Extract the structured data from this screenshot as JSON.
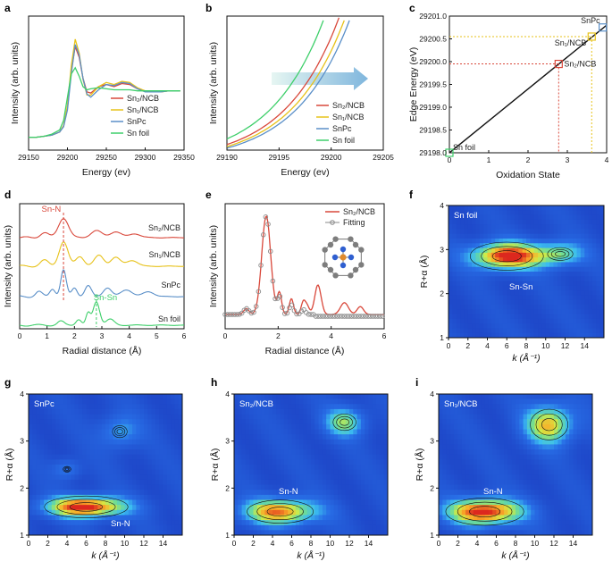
{
  "figure": {
    "panel_letters": [
      "a",
      "b",
      "c",
      "d",
      "e",
      "f",
      "g",
      "h",
      "i"
    ]
  },
  "colors": {
    "sn2": "#d9483b",
    "sn1": "#e7c21a",
    "snpc": "#5a8fc8",
    "snfoil": "#3ecf6a",
    "fitting": "#8a8a8a",
    "black": "#111111"
  },
  "chart_data": [
    {
      "panel": "a",
      "type": "line",
      "xlabel": "Energy (ev)",
      "ylabel": "Intensity (arb. units)",
      "xlim": [
        29150,
        29350
      ],
      "xticks": [
        "29150",
        "29200",
        "29250",
        "29300",
        "29350"
      ],
      "legend_position": "center-right",
      "series": [
        {
          "name": "Sn₂/NCB",
          "color": "#d9483b",
          "x": [
            29150,
            29160,
            29170,
            29180,
            29190,
            29195,
            29200,
            29205,
            29210,
            29215,
            29220,
            29225,
            29230,
            29240,
            29250,
            29260,
            29270,
            29280,
            29290,
            29300,
            29310,
            29320,
            29330,
            29340,
            29345
          ],
          "y": [
            0.02,
            0.02,
            0.03,
            0.04,
            0.07,
            0.13,
            0.3,
            0.65,
            0.88,
            0.78,
            0.58,
            0.45,
            0.44,
            0.5,
            0.52,
            0.5,
            0.53,
            0.52,
            0.48,
            0.46,
            0.45,
            0.45,
            0.46,
            0.46,
            0.46
          ]
        },
        {
          "name": "Sn₁/NCB",
          "color": "#e7c21a",
          "x": [
            29150,
            29160,
            29170,
            29180,
            29190,
            29195,
            29200,
            29205,
            29210,
            29215,
            29220,
            29225,
            29230,
            29240,
            29250,
            29260,
            29270,
            29280,
            29290,
            29300,
            29310,
            29320,
            29330,
            29340,
            29345
          ],
          "y": [
            0.02,
            0.02,
            0.03,
            0.04,
            0.07,
            0.13,
            0.32,
            0.7,
            0.95,
            0.82,
            0.57,
            0.42,
            0.42,
            0.5,
            0.54,
            0.52,
            0.55,
            0.54,
            0.49,
            0.46,
            0.45,
            0.45,
            0.46,
            0.46,
            0.46
          ]
        },
        {
          "name": "SnPc",
          "color": "#5a8fc8",
          "x": [
            29150,
            29160,
            29170,
            29180,
            29190,
            29195,
            29200,
            29205,
            29210,
            29215,
            29220,
            29225,
            29230,
            29240,
            29250,
            29260,
            29270,
            29280,
            29290,
            29300,
            29310,
            29320,
            29330,
            29340,
            29345
          ],
          "y": [
            0.02,
            0.02,
            0.03,
            0.04,
            0.07,
            0.12,
            0.28,
            0.62,
            0.9,
            0.8,
            0.58,
            0.43,
            0.4,
            0.47,
            0.52,
            0.51,
            0.54,
            0.53,
            0.48,
            0.45,
            0.45,
            0.45,
            0.46,
            0.46,
            0.46
          ]
        },
        {
          "name": "Sn foil",
          "color": "#3ecf6a",
          "x": [
            29150,
            29160,
            29170,
            29180,
            29190,
            29195,
            29200,
            29205,
            29210,
            29215,
            29220,
            29225,
            29230,
            29240,
            29250,
            29260,
            29270,
            29280,
            29290,
            29300,
            29310,
            29320,
            29330,
            29340,
            29345
          ],
          "y": [
            0.02,
            0.02,
            0.03,
            0.05,
            0.09,
            0.18,
            0.4,
            0.62,
            0.68,
            0.6,
            0.5,
            0.47,
            0.48,
            0.49,
            0.48,
            0.47,
            0.47,
            0.47,
            0.46,
            0.46,
            0.46,
            0.46,
            0.46,
            0.46,
            0.46
          ]
        }
      ]
    },
    {
      "panel": "b",
      "type": "line",
      "xlabel": "Energy (ev)",
      "ylabel": "Intensity (arb. units)",
      "xlim": [
        29190,
        29205
      ],
      "xticks": [
        "29190",
        "29195",
        "29200",
        "29205"
      ],
      "legend_position": "center-right",
      "series": [
        {
          "name": "Sn₂/NCB",
          "color": "#d9483b",
          "shift": 0.8
        },
        {
          "name": "Sn₁/NCB",
          "color": "#e7c21a",
          "shift": 1.4
        },
        {
          "name": "SnPc",
          "color": "#5a8fc8",
          "shift": 1.9
        },
        {
          "name": "Sn foil",
          "color": "#3ecf6a",
          "shift": -0.6
        }
      ]
    },
    {
      "panel": "c",
      "type": "scatter",
      "xlabel": "Oxidation State",
      "ylabel": "Edge Energy (eV)",
      "xlim": [
        0,
        4
      ],
      "ylim": [
        29198.0,
        29201.0
      ],
      "xticks": [
        "0",
        "1",
        "2",
        "3",
        "4"
      ],
      "yticks": [
        "29198.0",
        "29198.5",
        "29199.0",
        "29199.5",
        "29200.0",
        "29200.5",
        "29201.0"
      ],
      "fit_line": {
        "x": [
          0,
          4
        ],
        "y": [
          29198.0,
          29200.8
        ]
      },
      "points": [
        {
          "name": "Sn foil",
          "x": 0.0,
          "y": 29198.0,
          "color": "#3ecf6a"
        },
        {
          "name": "Sn₂/NCB",
          "x": 2.78,
          "y": 29199.95,
          "color": "#d9483b"
        },
        {
          "name": "Sn₁/NCB",
          "x": 3.62,
          "y": 29200.55,
          "color": "#e7c21a"
        },
        {
          "name": "SnPc",
          "x": 3.9,
          "y": 29200.75,
          "color": "#5a8fc8"
        }
      ]
    },
    {
      "panel": "d",
      "type": "line",
      "xlabel": "Radial distance (Å)",
      "ylabel": "Intensity (arb. units)",
      "xlim": [
        0,
        6
      ],
      "xticks": [
        "0",
        "1",
        "2",
        "3",
        "4",
        "5",
        "6"
      ],
      "annotations": [
        "Sn-N",
        "Sn-Sn"
      ],
      "series": [
        {
          "name": "Sn₂/NCB",
          "color": "#d9483b"
        },
        {
          "name": "Sn₁/NCB",
          "color": "#e7c21a"
        },
        {
          "name": "SnPc",
          "color": "#5a8fc8"
        },
        {
          "name": "Sn foil",
          "color": "#3ecf6a"
        }
      ]
    },
    {
      "panel": "e",
      "type": "line",
      "xlabel": "Radial distance (Å)",
      "ylabel": "Intensity (arb. units)",
      "xlim": [
        0,
        6
      ],
      "xticks": [
        "0",
        "2",
        "4",
        "6"
      ],
      "series": [
        {
          "name": "Sn₂/NCB",
          "color": "#d9483b"
        },
        {
          "name": "Fitting",
          "color": "#8a8a8a"
        }
      ]
    },
    {
      "panel": "f",
      "type": "heatmap",
      "label": "Sn foil",
      "annotation": "Sn-Sn",
      "xlabel": "k (Å⁻¹)",
      "ylabel": "R+α (Å)",
      "xlim": [
        0,
        16
      ],
      "ylim": [
        1,
        4
      ],
      "xticks": [
        "0",
        "2",
        "4",
        "6",
        "8",
        "10",
        "12",
        "14"
      ],
      "yticks": [
        "1",
        "2",
        "3",
        "4"
      ],
      "peaks": [
        {
          "k": 6.0,
          "r": 2.85,
          "amp": 1.0,
          "sk": 2.6,
          "sr": 0.22
        },
        {
          "k": 11.5,
          "r": 2.9,
          "amp": 0.5,
          "sk": 1.8,
          "sr": 0.2
        }
      ]
    },
    {
      "panel": "g",
      "type": "heatmap",
      "label": "SnPc",
      "annotation": "Sn-N",
      "xlabel": "k (Å⁻¹)",
      "ylabel": "R+α (Å)",
      "xlim": [
        0,
        16
      ],
      "ylim": [
        1,
        4
      ],
      "xticks": [
        "0",
        "2",
        "4",
        "6",
        "8",
        "10",
        "12",
        "14"
      ],
      "yticks": [
        "1",
        "2",
        "3",
        "4"
      ],
      "peaks": [
        {
          "k": 6.0,
          "r": 1.6,
          "amp": 1.0,
          "sk": 3.0,
          "sr": 0.16
        },
        {
          "k": 9.5,
          "r": 3.2,
          "amp": 0.35,
          "sk": 1.5,
          "sr": 0.25
        },
        {
          "k": 4.0,
          "r": 2.4,
          "amp": 0.28,
          "sk": 1.0,
          "sr": 0.15
        }
      ]
    },
    {
      "panel": "h",
      "type": "heatmap",
      "label": "Sn₂/NCB",
      "annotation": "Sn-N",
      "xlabel": "k (Å⁻¹)",
      "ylabel": "R+α (Å)",
      "xlim": [
        0,
        16
      ],
      "ylim": [
        1,
        4
      ],
      "xticks": [
        "0",
        "2",
        "4",
        "6",
        "8",
        "10",
        "12",
        "14"
      ],
      "yticks": [
        "1",
        "2",
        "3",
        "4"
      ],
      "peaks": [
        {
          "k": 4.8,
          "r": 1.5,
          "amp": 0.85,
          "sk": 2.8,
          "sr": 0.2
        },
        {
          "k": 11.5,
          "r": 3.4,
          "amp": 0.55,
          "sk": 1.5,
          "sr": 0.22
        }
      ]
    },
    {
      "panel": "i",
      "type": "heatmap",
      "label": "Sn₁/NCB",
      "annotation": "Sn-N",
      "xlabel": "k (Å⁻¹)",
      "ylabel": "R+α (Å)",
      "xlim": [
        0,
        16
      ],
      "ylim": [
        1,
        4
      ],
      "xticks": [
        "0",
        "2",
        "4",
        "6",
        "8",
        "10",
        "12",
        "14"
      ],
      "yticks": [
        "1",
        "2",
        "3",
        "4"
      ],
      "peaks": [
        {
          "k": 4.8,
          "r": 1.5,
          "amp": 1.0,
          "sk": 2.8,
          "sr": 0.2
        },
        {
          "k": 11.5,
          "r": 3.35,
          "amp": 0.75,
          "sk": 1.8,
          "sr": 0.3
        }
      ]
    }
  ]
}
